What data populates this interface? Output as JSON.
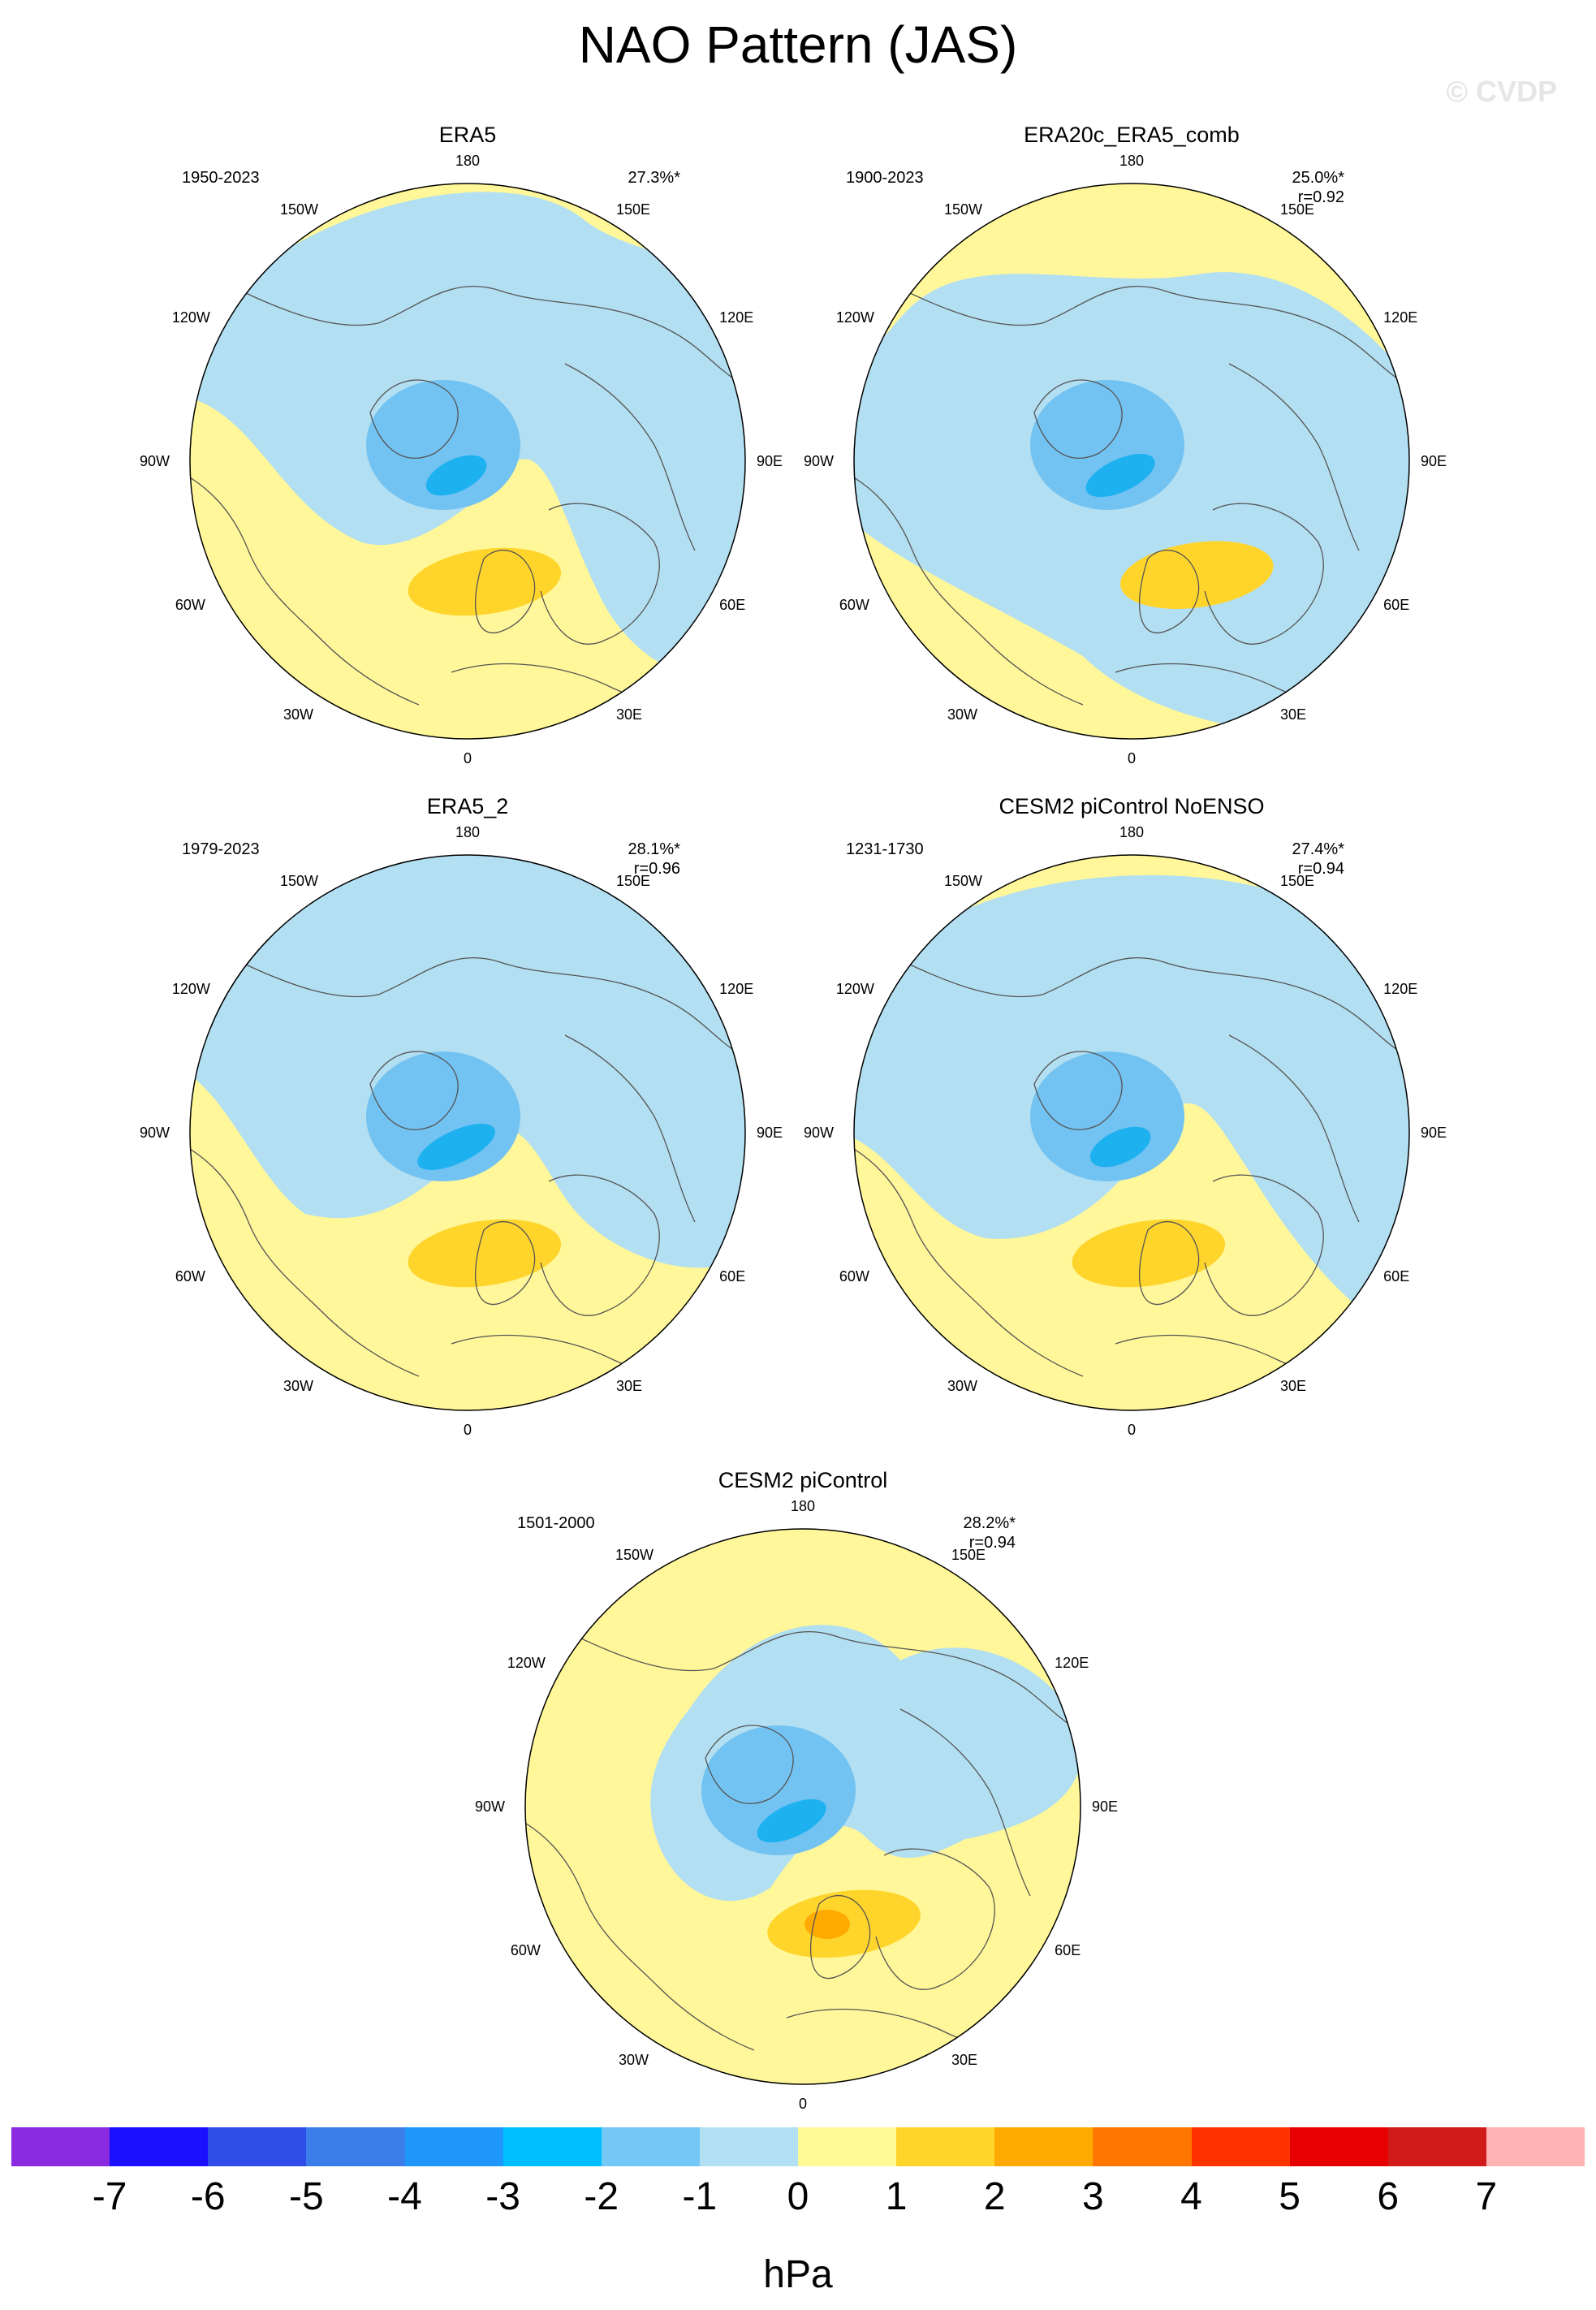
{
  "title": "NAO Pattern (JAS)",
  "watermark": "© CVDP",
  "unit": "hPa",
  "lon_labels": {
    "top": "180",
    "bottom": "0",
    "left": "90W",
    "right": "90E",
    "upper_left_outer": "120W",
    "upper_left_inner": "150W",
    "upper_right_inner": "150E",
    "upper_right_outer": "120E",
    "lower_left_upper": "60W",
    "lower_left_lower": "30W",
    "lower_right_upper": "60E",
    "lower_right_lower": "30E"
  },
  "panels": [
    {
      "title": "ERA5",
      "years": "1950-2023",
      "pct": "27.3%*",
      "r": ""
    },
    {
      "title": "ERA20c_ERA5_comb",
      "years": "1900-2023",
      "pct": "25.0%*",
      "r": "r=0.92"
    },
    {
      "title": "ERA5_2",
      "years": "1979-2023",
      "pct": "28.1%*",
      "r": "r=0.96"
    },
    {
      "title": "CESM2 piControl NoENSO",
      "years": "1231-1730",
      "pct": "27.4%*",
      "r": "r=0.94"
    },
    {
      "title": "CESM2 piControl",
      "years": "1501-2000",
      "pct": "28.2%*",
      "r": "r=0.94"
    }
  ],
  "colorbar": {
    "colors": [
      "#8a2be2",
      "#1a0fff",
      "#2e4ce6",
      "#3b7de9",
      "#1e96fa",
      "#00bfff",
      "#73c8f5",
      "#b3dff2",
      "#fffa96",
      "#ffd52b",
      "#ffaa00",
      "#ff7700",
      "#ff3300",
      "#e60000",
      "#d11a1a",
      "#ffb3b3"
    ],
    "labels": [
      "-7",
      "-6",
      "-5",
      "-4",
      "-3",
      "-2",
      "-1",
      "0",
      "1",
      "2",
      "3",
      "4",
      "5",
      "6",
      "7"
    ]
  },
  "palette": {
    "yellow": "#fff799",
    "lightblue": "#b3dff2",
    "blue1": "#73c3f2",
    "blue2": "#1eb1f0",
    "orange1": "#ffd52b",
    "orange2": "#ffaa00",
    "coast": "#555555"
  }
}
